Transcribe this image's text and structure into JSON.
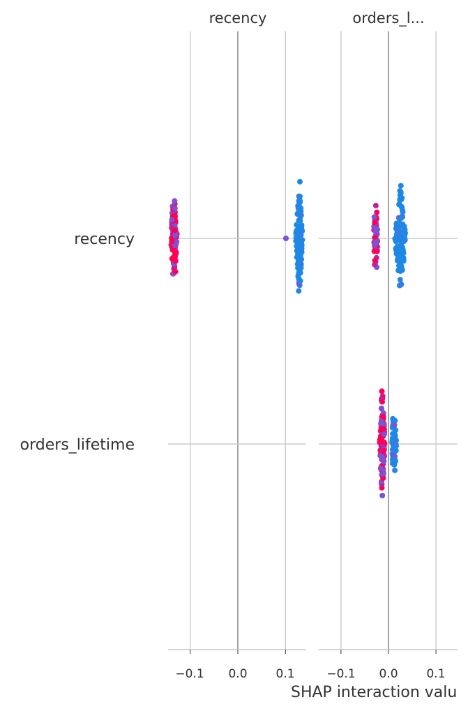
{
  "chart_data": {
    "type": "scatter",
    "subtype": "shap_interaction_beeswarm",
    "panels": [
      "recency",
      "orders_l..."
    ],
    "features": [
      "recency",
      "orders_lifetime"
    ],
    "xlabel": "SHAP interaction valu",
    "xticks": [
      "−0.1",
      "0.0",
      "0.1"
    ],
    "tick_values": [
      -0.1,
      0.0,
      0.1
    ],
    "xlim": [
      -0.147,
      0.147
    ],
    "grid": true,
    "colors": {
      "low_feature_value": "#1e88e5",
      "mid_feature_value": "#7c52d6",
      "high_feature_value": "#ff0052",
      "axis": "#cccccc",
      "zero_line": "#999999",
      "text": "#333333"
    },
    "clusters": [
      {
        "panel": 0,
        "feature": 0,
        "x": -0.134,
        "y_low": -0.63,
        "y_high": 0.66,
        "n": 90,
        "mix": "high",
        "center_spread": 0.005
      },
      {
        "panel": 0,
        "feature": 0,
        "x": 0.129,
        "y_low": -0.78,
        "y_high": 0.81,
        "n": 110,
        "mix": "low",
        "center_spread": 0.006
      },
      {
        "panel": 1,
        "feature": 0,
        "x": -0.027,
        "y_low": -0.42,
        "y_high": 0.48,
        "n": 55,
        "mix": "high",
        "center_spread": 0.003
      },
      {
        "panel": 1,
        "feature": 0,
        "x": 0.025,
        "y_low": -0.8,
        "y_high": 0.79,
        "n": 110,
        "mix": "low",
        "center_spread": 0.01
      },
      {
        "panel": 1,
        "feature": 1,
        "x": -0.013,
        "y_low": -0.79,
        "y_high": 0.82,
        "n": 100,
        "mix": "high",
        "center_spread": 0.004
      },
      {
        "panel": 1,
        "feature": 1,
        "x": 0.012,
        "y_low": -0.46,
        "y_high": 0.44,
        "n": 60,
        "mix": "low",
        "center_spread": 0.003
      }
    ],
    "outliers": [
      {
        "panel": 0,
        "feature": 0,
        "x": 0.101,
        "y": 0.0,
        "color": "mid"
      }
    ]
  }
}
